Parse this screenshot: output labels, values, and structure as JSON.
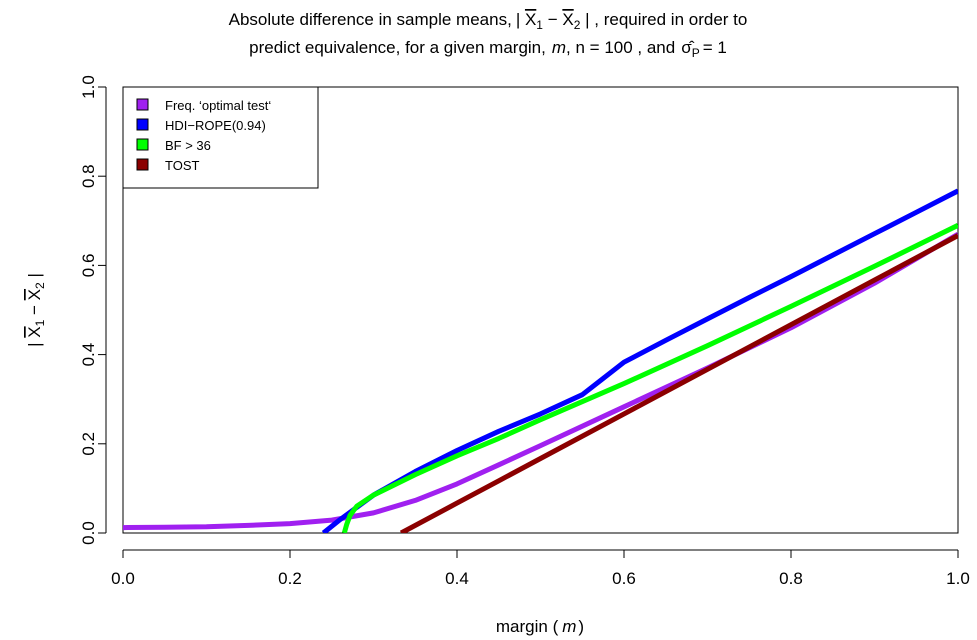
{
  "chart_data": {
    "type": "line",
    "title_line1_pre": "Absolute difference in sample means,",
    "title_line1_post": ", required in order to",
    "title_line2": "predict equivalence, for a given margin,",
    "title_line2_m": "m",
    "title_line2_n": ", n = 100 , and",
    "title_line2_sigma_eq": "= 1",
    "xlabel_pre": "margin (",
    "xlabel_m": "m",
    "xlabel_post": ")",
    "ylabel": "| X̅₁ − X̅₂ |",
    "xlim": [
      0,
      1
    ],
    "ylim": [
      0,
      1
    ],
    "x_ticks": [
      "0.0",
      "0.2",
      "0.4",
      "0.6",
      "0.8",
      "1.0"
    ],
    "y_ticks": [
      "0.0",
      "0.2",
      "0.4",
      "0.6",
      "0.8",
      "1.0"
    ],
    "grid": false,
    "legend_position": "top-left",
    "series": [
      {
        "name": "Freq. ‘optimal test‘",
        "color": "#a020f0",
        "x": [
          0.0,
          0.05,
          0.1,
          0.15,
          0.2,
          0.25,
          0.3,
          0.35,
          0.4,
          0.45,
          0.5,
          0.6,
          0.7,
          0.8,
          0.9,
          1.0
        ],
        "y": [
          0.012,
          0.013,
          0.014,
          0.017,
          0.021,
          0.029,
          0.045,
          0.073,
          0.11,
          0.153,
          0.196,
          0.283,
          0.37,
          0.46,
          0.56,
          0.67
        ]
      },
      {
        "name": "HDI−ROPE(0.94)",
        "color": "#0000ff",
        "x": [
          0.24,
          0.26,
          0.3,
          0.35,
          0.4,
          0.45,
          0.5,
          0.55,
          0.6,
          0.65,
          0.7,
          0.75,
          0.8,
          0.85,
          0.9,
          0.95,
          1.0
        ],
        "y": [
          0.0,
          0.03,
          0.085,
          0.138,
          0.185,
          0.228,
          0.267,
          0.31,
          0.383,
          0.432,
          0.48,
          0.528,
          0.575,
          0.623,
          0.671,
          0.719,
          0.767
        ]
      },
      {
        "name": "BF > 36",
        "color": "#00ff00",
        "x": [
          0.265,
          0.268,
          0.272,
          0.28,
          0.3,
          0.35,
          0.4,
          0.45,
          0.5,
          0.6,
          0.7,
          0.8,
          0.9,
          1.0
        ],
        "y": [
          0.0,
          0.02,
          0.04,
          0.06,
          0.085,
          0.131,
          0.173,
          0.212,
          0.254,
          0.335,
          0.42,
          0.508,
          0.598,
          0.69
        ]
      },
      {
        "name": "TOST",
        "color": "#8b0000",
        "x": [
          0.333,
          0.4,
          0.45,
          0.5,
          0.6,
          0.7,
          0.8,
          0.9,
          1.0
        ],
        "y": [
          0.0,
          0.067,
          0.117,
          0.167,
          0.267,
          0.367,
          0.467,
          0.567,
          0.667
        ]
      }
    ]
  }
}
